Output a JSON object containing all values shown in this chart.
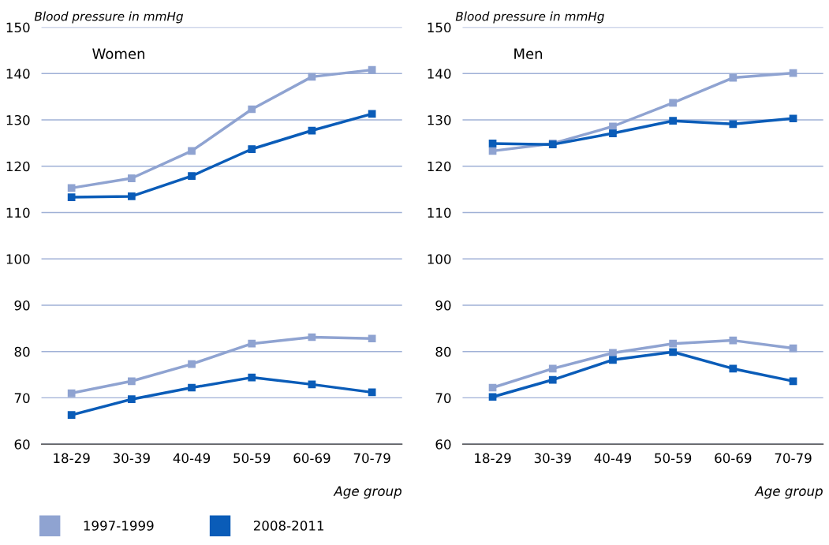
{
  "chart_data": [
    {
      "type": "line",
      "ylabel": "Blood pressure in mmHg",
      "xlabel": "Age group",
      "annotations": [
        "Women"
      ],
      "categories": [
        "18-29",
        "30-39",
        "40-49",
        "50-59",
        "60-69",
        "70-79"
      ],
      "ylim": [
        60,
        150
      ],
      "yticks": [
        60,
        70,
        80,
        90,
        100,
        110,
        120,
        130,
        140,
        150
      ],
      "grid": "y",
      "marker": "square",
      "line_style": "solid",
      "legend": "bottom left",
      "series": [
        {
          "name": "1997-1999",
          "color": "#8fa3d1",
          "values": [
            115.3,
            117.4,
            123.3,
            132.3,
            139.3,
            140.8
          ]
        },
        {
          "name": "2008-2011",
          "color": "#0a5cb8",
          "values": [
            113.3,
            113.5,
            117.9,
            123.7,
            127.7,
            131.3
          ]
        },
        {
          "color": "#8fa3d1",
          "values": [
            71.0,
            73.6,
            77.3,
            81.7,
            83.1,
            82.8
          ]
        },
        {
          "color": "#0a5cb8",
          "values": [
            66.3,
            69.7,
            72.2,
            74.4,
            72.9,
            71.2
          ]
        }
      ]
    },
    {
      "type": "line",
      "ylabel": "Blood pressure in mmHg",
      "xlabel": "Age group",
      "annotations": [
        "Men"
      ],
      "categories": [
        "18-29",
        "30-39",
        "40-49",
        "50-59",
        "60-69",
        "70-79"
      ],
      "ylim": [
        60,
        150
      ],
      "yticks": [
        60,
        70,
        80,
        90,
        100,
        110,
        120,
        130,
        140,
        150
      ],
      "grid": "y",
      "marker": "square",
      "line_style": "solid",
      "series": [
        {
          "color": "#8fa3d1",
          "values": [
            123.3,
            124.9,
            128.6,
            133.7,
            139.1,
            140.1
          ]
        },
        {
          "color": "#0a5cb8",
          "values": [
            124.9,
            124.7,
            127.1,
            129.8,
            129.1,
            130.3
          ]
        },
        {
          "color": "#8fa3d1",
          "values": [
            72.2,
            76.3,
            79.7,
            81.7,
            82.4,
            80.7
          ]
        },
        {
          "color": "#0a5cb8",
          "values": [
            70.2,
            73.9,
            78.2,
            79.9,
            76.3,
            73.6
          ]
        }
      ]
    }
  ]
}
